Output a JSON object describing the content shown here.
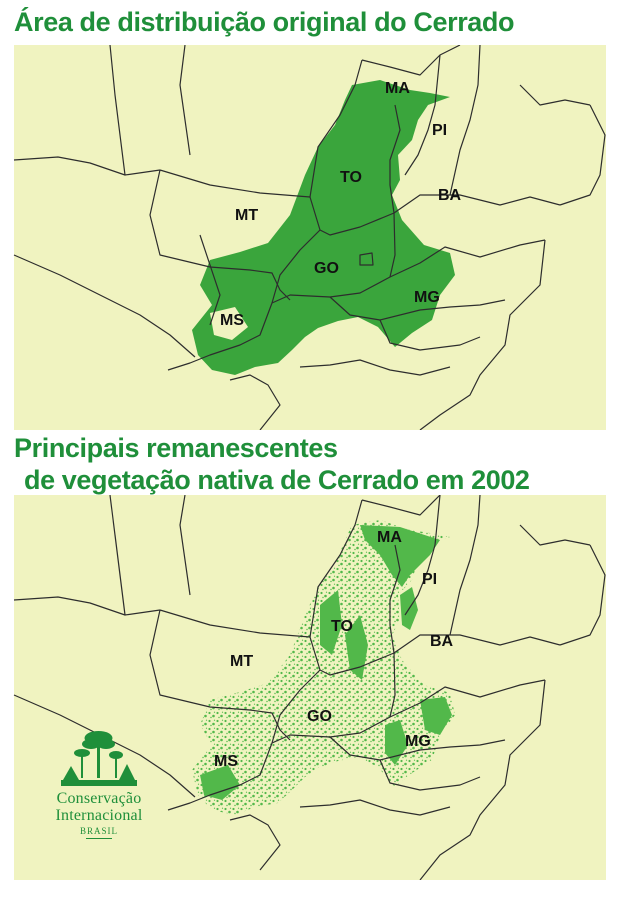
{
  "map_top": {
    "title": "Área de distribuição original do Cerrado",
    "states": [
      "MA",
      "PI",
      "TO",
      "BA",
      "MT",
      "GO",
      "MG",
      "MS"
    ]
  },
  "map_bottom": {
    "title_line1": "Principais remanescentes",
    "title_line2": "de vegetação nativa de Cerrado em 2002",
    "states": [
      "MA",
      "PI",
      "TO",
      "BA",
      "MT",
      "GO",
      "MG",
      "MS"
    ]
  },
  "logo": {
    "line1": "Conservação",
    "line2": "Internacional",
    "subtitle": "BRASIL"
  },
  "colors": {
    "land": "#f0f3c0",
    "cerrado": "#3aa53c",
    "remnant": "#52b84a",
    "border": "#2d2d2d",
    "title": "#1f8f3a"
  },
  "icons": [
    "conservation-international-logo-icon"
  ]
}
